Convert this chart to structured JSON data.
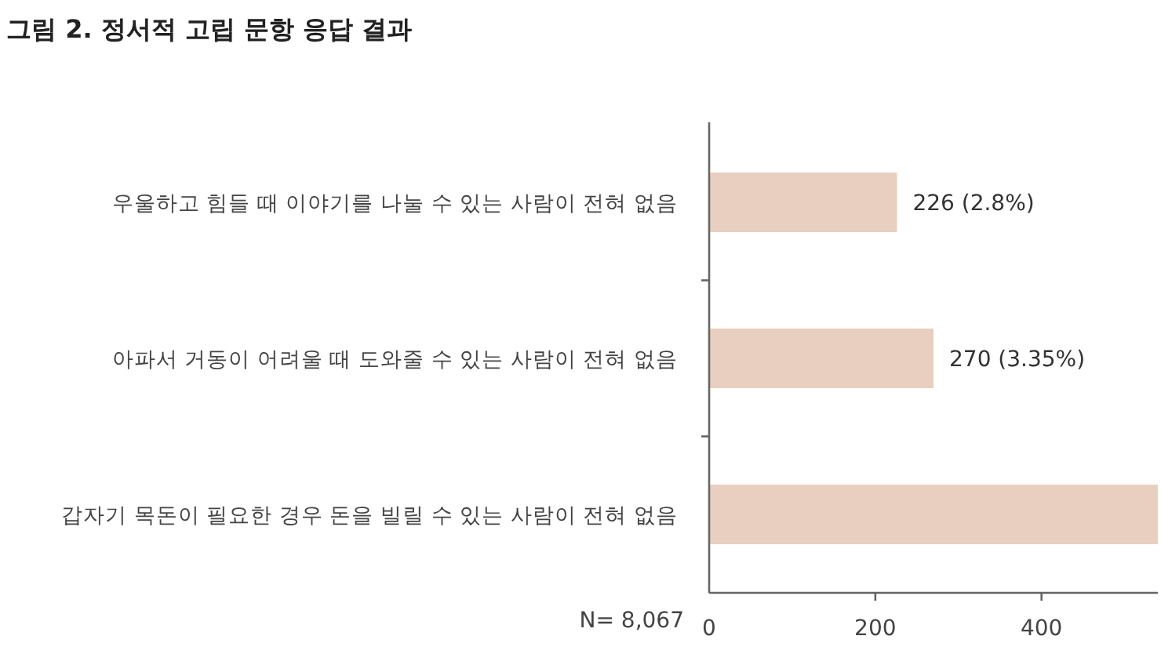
{
  "chart_data": {
    "type": "bar",
    "orientation": "horizontal",
    "title": "그림 2. 정서적 고립 문항 응답 결과",
    "categories": [
      "우울하고 힘들 때 이야기를 나눌 수 있는 사람이 전혀 없음",
      "아파서 거동이 어려울 때 도와줄 수 있는 사람이 전혀 없음",
      "갑자기 목돈이 필요한 경우 돈을 빌릴 수 있는 사람이 전혀 없음"
    ],
    "values": [
      226,
      270,
      540
    ],
    "value_labels": [
      "226 (2.8%)",
      "270 (3.35%)",
      null
    ],
    "color": "#e9cfbf",
    "xlim": [
      0,
      540
    ],
    "xticks": [
      0,
      200,
      400
    ],
    "annotations": [
      "N= 8,067"
    ]
  }
}
